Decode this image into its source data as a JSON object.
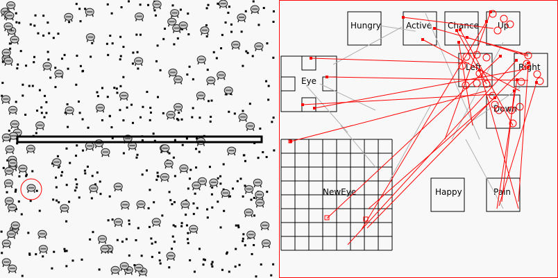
{
  "world": {
    "selected_creature": "highlighted-creature",
    "colors": {
      "creature": "#999999",
      "food": "#000000",
      "wall": "#000000",
      "selection": "#ff0000"
    }
  },
  "brain": {
    "nodes": {
      "hungry": "Hungry",
      "active": "Active",
      "chance": "Chance",
      "up": "Up",
      "left": "Left",
      "right": "Right",
      "eye": "Eye",
      "down": "Down",
      "neweye": "NewEye",
      "happy": "Happy",
      "pain": "Pain"
    },
    "colors": {
      "border": "#ff0000",
      "excitatory": "#ff0000",
      "inactive": "#b0b0b0"
    }
  }
}
